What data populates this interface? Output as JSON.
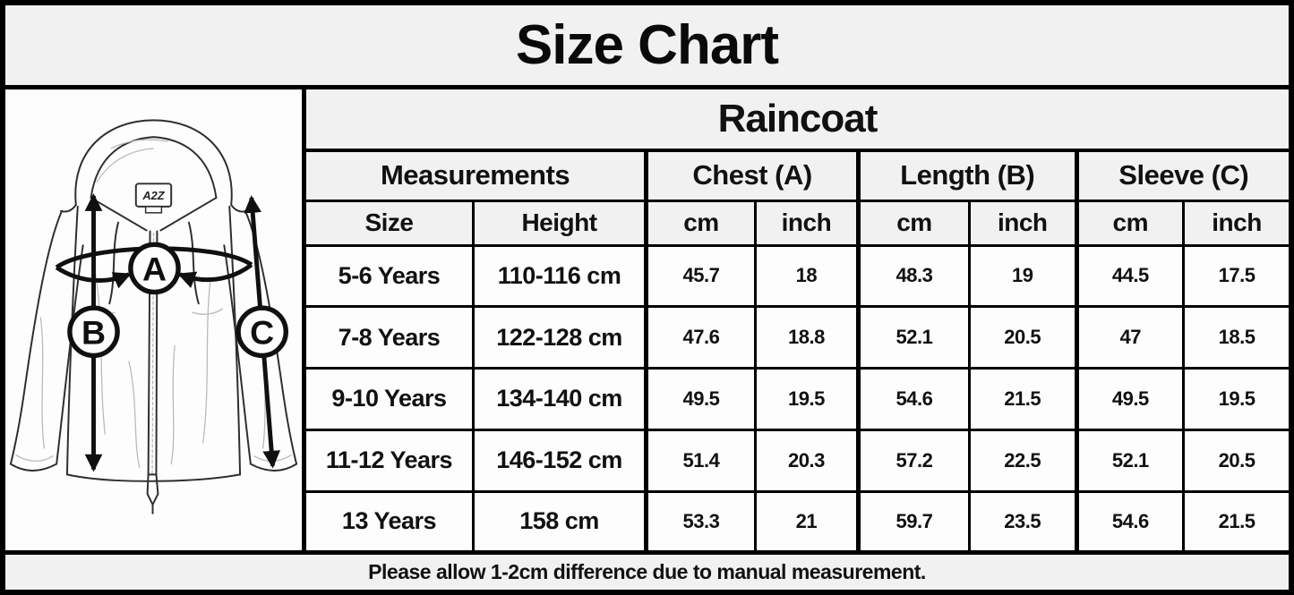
{
  "title": "Size Chart",
  "product": "Raincoat",
  "table": {
    "group_headers": [
      {
        "label": "Measurements",
        "span": 2
      },
      {
        "label": "Chest (A)",
        "span": 2
      },
      {
        "label": "Length (B)",
        "span": 2
      },
      {
        "label": "Sleeve (C)",
        "span": 2
      }
    ],
    "sub_headers": [
      "Size",
      "Height",
      "cm",
      "inch",
      "cm",
      "inch",
      "cm",
      "inch"
    ],
    "col_widths": [
      "17%",
      "17.6%",
      "11.1%",
      "10.5%",
      "11.3%",
      "10.9%",
      "10.9%",
      "10.7%"
    ],
    "rows": [
      [
        "5-6 Years",
        "110-116 cm",
        "45.7",
        "18",
        "48.3",
        "19",
        "44.5",
        "17.5"
      ],
      [
        "7-8 Years",
        "122-128 cm",
        "47.6",
        "18.8",
        "52.1",
        "20.5",
        "47",
        "18.5"
      ],
      [
        "9-10 Years",
        "134-140 cm",
        "49.5",
        "19.5",
        "54.6",
        "21.5",
        "49.5",
        "19.5"
      ],
      [
        "11-12 Years",
        "146-152 cm",
        "51.4",
        "20.3",
        "57.2",
        "22.5",
        "52.1",
        "20.5"
      ],
      [
        "13 Years",
        "158 cm",
        "53.3",
        "21",
        "59.7",
        "23.5",
        "54.6",
        "21.5"
      ]
    ]
  },
  "footer_note": "Please allow 1-2cm difference due to manual measurement.",
  "diagram": {
    "chest_label": "A",
    "length_label": "B",
    "sleeve_label": "C",
    "tag_text": "A2Z"
  },
  "colors": {
    "header_bg": "#f1f1f1",
    "cell_bg": "#fdfdfd",
    "border": "#000000",
    "text": "#111111"
  }
}
